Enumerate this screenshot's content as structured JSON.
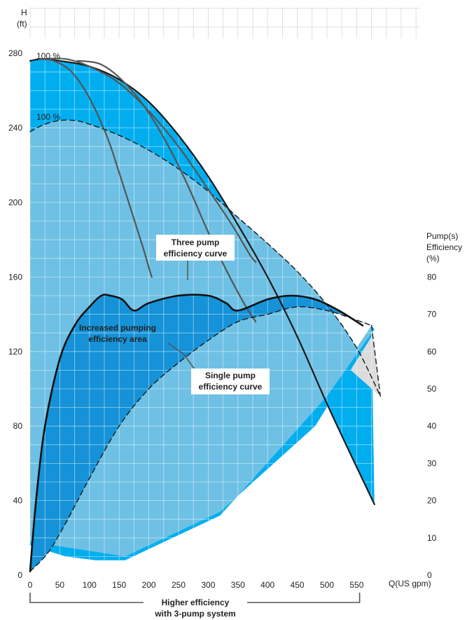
{
  "chart_data": {
    "type": "line",
    "x_axis": {
      "label": "Q(US gpm)",
      "range": [
        0,
        600
      ],
      "ticks": [
        0,
        50,
        100,
        150,
        200,
        250,
        300,
        350,
        400,
        450,
        500,
        550
      ]
    },
    "y_axis_left": {
      "label_line1": "H",
      "label_line2": "(ft)",
      "range": [
        0,
        300
      ],
      "ticks": [
        0,
        40,
        80,
        120,
        160,
        200,
        240,
        280
      ]
    },
    "y_axis_right": {
      "label_line1": "Pump(s)",
      "label_line2": "Efficiency",
      "label_line3": "(%)",
      "range": [
        0,
        80
      ],
      "ticks": [
        0,
        10,
        20,
        30,
        40,
        50,
        60,
        70,
        80
      ]
    },
    "grid": true,
    "curve_labels": {
      "max_speed": "100 %",
      "reduced_speed": "100 %"
    },
    "annotations": {
      "three_pump_line1": "Three pump",
      "three_pump_line2": "efficiency curve",
      "increased_line1": "Increased pumping",
      "increased_line2": "efficiency area",
      "single_pump_line1": "Single pump",
      "single_pump_line2": "efficiency curve",
      "bracket_line1": "Higher efficiency",
      "bracket_line2": "with 3-pump system"
    },
    "bracket_range": [
      0,
      555
    ],
    "series": {
      "max_speed_head": [
        [
          0,
          276
        ],
        [
          20,
          277
        ],
        [
          50,
          276
        ],
        [
          100,
          273
        ],
        [
          150,
          266
        ],
        [
          200,
          254
        ],
        [
          250,
          236
        ],
        [
          300,
          214
        ],
        [
          350,
          188
        ],
        [
          400,
          160
        ],
        [
          450,
          128
        ],
        [
          500,
          92
        ],
        [
          550,
          58
        ],
        [
          580,
          38
        ]
      ],
      "reduced_speed_head_dashed": [
        [
          0,
          238
        ],
        [
          25,
          242
        ],
        [
          50,
          244
        ],
        [
          75,
          244
        ],
        [
          100,
          242
        ],
        [
          150,
          236
        ],
        [
          200,
          228
        ],
        [
          250,
          218
        ],
        [
          300,
          206
        ],
        [
          350,
          192
        ],
        [
          400,
          178
        ],
        [
          450,
          163
        ],
        [
          500,
          145
        ],
        [
          550,
          122
        ],
        [
          590,
          96
        ]
      ],
      "system_curve_1": [
        [
          15,
          277
        ],
        [
          40,
          276
        ],
        [
          70,
          270
        ],
        [
          100,
          256
        ],
        [
          130,
          235
        ],
        [
          150,
          216
        ],
        [
          170,
          196
        ],
        [
          190,
          176
        ],
        [
          200,
          165
        ],
        [
          205,
          160
        ]
      ],
      "system_curve_2": [
        [
          20,
          277
        ],
        [
          60,
          277
        ],
        [
          100,
          273
        ],
        [
          150,
          264
        ],
        [
          200,
          249
        ],
        [
          250,
          230
        ],
        [
          300,
          207
        ],
        [
          340,
          188
        ],
        [
          370,
          172
        ],
        [
          380,
          168
        ]
      ],
      "system_curve_3": [
        [
          80,
          276
        ],
        [
          120,
          274
        ],
        [
          160,
          264
        ],
        [
          200,
          248
        ],
        [
          240,
          226
        ],
        [
          270,
          206
        ],
        [
          300,
          184
        ],
        [
          330,
          164
        ],
        [
          360,
          146
        ],
        [
          380,
          136
        ]
      ],
      "three_pump_efficiency_pct": [
        [
          0,
          1
        ],
        [
          10,
          20
        ],
        [
          25,
          40
        ],
        [
          50,
          58
        ],
        [
          75,
          67
        ],
        [
          100,
          72
        ],
        [
          120,
          75
        ],
        [
          135,
          75
        ],
        [
          155,
          74
        ],
        [
          175,
          71
        ],
        [
          200,
          73
        ],
        [
          250,
          75
        ],
        [
          300,
          75
        ],
        [
          330,
          73
        ],
        [
          350,
          71
        ],
        [
          400,
          74
        ],
        [
          440,
          75
        ],
        [
          480,
          74
        ],
        [
          520,
          71
        ],
        [
          560,
          67
        ]
      ],
      "single_pump_efficiency_pct": [
        [
          0,
          1
        ],
        [
          30,
          6
        ],
        [
          60,
          14
        ],
        [
          100,
          26
        ],
        [
          150,
          40
        ],
        [
          200,
          50
        ],
        [
          250,
          57
        ],
        [
          300,
          63
        ],
        [
          350,
          68
        ],
        [
          400,
          70
        ],
        [
          450,
          72
        ],
        [
          500,
          71
        ],
        [
          540,
          69
        ],
        [
          575,
          67
        ]
      ]
    }
  }
}
